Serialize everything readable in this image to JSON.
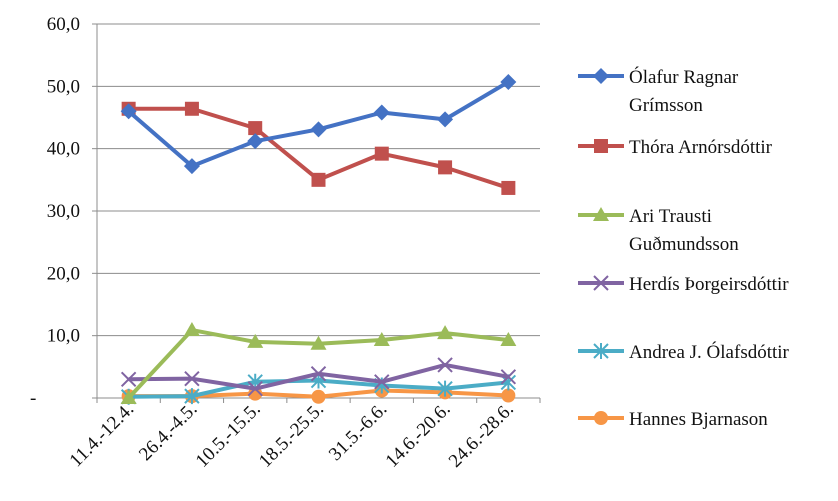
{
  "chart_data": {
    "type": "line",
    "categories": [
      "11.4.-12.4.",
      "26.4.-4.5.",
      "10.5.-15.5.",
      "18.5.-25.5.",
      "31.5.-6.6.",
      "14.6.-20.6.",
      "24.6.-28.6."
    ],
    "y_ticks": [
      "-",
      "10,0",
      "20,0",
      "30,0",
      "40,0",
      "50,0",
      "60,0"
    ],
    "ylim": [
      0,
      60
    ],
    "grid": "horizontal",
    "legend_position": "right",
    "series": [
      {
        "name": "Ólafur Ragnar Grímsson",
        "name_lines": [
          "Ólafur Ragnar",
          "Grímsson"
        ],
        "color": "#4472c4",
        "marker": "diamond",
        "values": [
          46.0,
          37.2,
          41.2,
          43.1,
          45.8,
          44.7,
          50.7
        ]
      },
      {
        "name": "Thóra Arnórsdóttir",
        "name_lines": [
          "Thóra Arnórsdóttir"
        ],
        "color": "#c0504d",
        "marker": "square",
        "values": [
          46.4,
          46.4,
          43.3,
          35.0,
          39.2,
          37.0,
          33.7
        ]
      },
      {
        "name": "Ari Trausti Guðmundsson",
        "name_lines": [
          "Ari Trausti",
          "Guðmundsson"
        ],
        "color": "#9bbb59",
        "marker": "triangle",
        "values": [
          0.0,
          10.9,
          9.0,
          8.7,
          9.3,
          10.4,
          9.3
        ]
      },
      {
        "name": "Herdís Þorgeirsdóttir",
        "name_lines": [
          "Herdís Þorgeirsdóttir"
        ],
        "color": "#8064a2",
        "marker": "x",
        "values": [
          3.0,
          3.1,
          1.5,
          3.9,
          2.6,
          5.3,
          3.4
        ]
      },
      {
        "name": "Andrea J. Ólafsdóttir",
        "name_lines": [
          "Andrea J. Ólafsdóttir"
        ],
        "color": "#4bacc6",
        "marker": "star",
        "values": [
          0.2,
          0.3,
          2.6,
          2.8,
          2.0,
          1.5,
          2.5
        ]
      },
      {
        "name": "Hannes Bjarnason",
        "name_lines": [
          "Hannes Bjarnason"
        ],
        "color": "#f79646",
        "marker": "circle",
        "values": [
          0.3,
          0.3,
          0.7,
          0.2,
          1.2,
          0.9,
          0.4
        ]
      }
    ]
  }
}
